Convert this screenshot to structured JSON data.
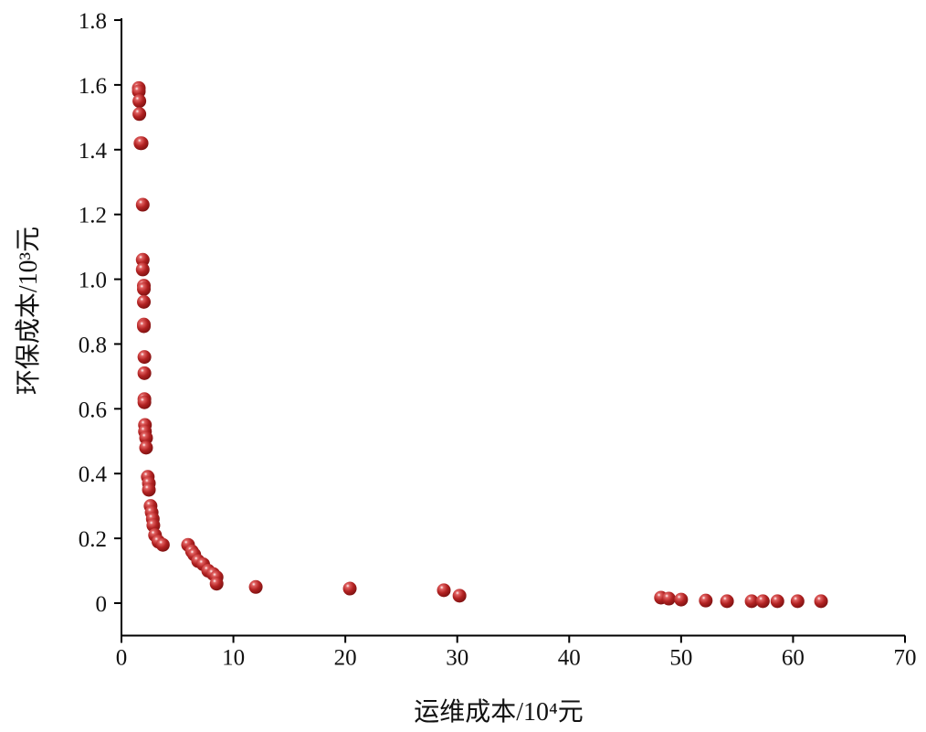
{
  "chart_data": {
    "type": "scatter",
    "xlabel": "运维成本/10⁴元",
    "ylabel": "环保成本/10³元",
    "xlim": [
      0,
      70
    ],
    "ylim": [
      -0.1,
      1.8
    ],
    "xticks": [
      0,
      10,
      20,
      30,
      40,
      50,
      60,
      70
    ],
    "yticks": [
      0,
      0.2,
      0.4,
      0.6,
      0.8,
      1.0,
      1.2,
      1.4,
      1.6,
      1.8
    ],
    "ytick_labels": [
      "0",
      "0.2",
      "0.4",
      "0.6",
      "0.8",
      "1.0",
      "1.2",
      "1.4",
      "1.6",
      "1.8"
    ],
    "grid": false,
    "marker_color": "#b22222",
    "points": [
      [
        1.55,
        1.59
      ],
      [
        1.55,
        1.58
      ],
      [
        1.6,
        1.55
      ],
      [
        1.6,
        1.51
      ],
      [
        1.7,
        1.42
      ],
      [
        1.8,
        1.42
      ],
      [
        1.9,
        1.23
      ],
      [
        1.9,
        1.06
      ],
      [
        1.9,
        1.03
      ],
      [
        2.0,
        0.98
      ],
      [
        2.0,
        0.97
      ],
      [
        2.0,
        0.93
      ],
      [
        2.0,
        0.86
      ],
      [
        2.0,
        0.855
      ],
      [
        2.05,
        0.76
      ],
      [
        2.05,
        0.71
      ],
      [
        2.05,
        0.63
      ],
      [
        2.05,
        0.62
      ],
      [
        2.1,
        0.55
      ],
      [
        2.1,
        0.53
      ],
      [
        2.2,
        0.51
      ],
      [
        2.2,
        0.48
      ],
      [
        2.35,
        0.39
      ],
      [
        2.45,
        0.37
      ],
      [
        2.45,
        0.35
      ],
      [
        2.6,
        0.3
      ],
      [
        2.7,
        0.28
      ],
      [
        2.8,
        0.26
      ],
      [
        2.85,
        0.24
      ],
      [
        3.0,
        0.21
      ],
      [
        3.3,
        0.19
      ],
      [
        3.7,
        0.18
      ],
      [
        5.95,
        0.18
      ],
      [
        6.3,
        0.16
      ],
      [
        6.5,
        0.15
      ],
      [
        6.85,
        0.13
      ],
      [
        7.3,
        0.12
      ],
      [
        7.75,
        0.1
      ],
      [
        8.2,
        0.09
      ],
      [
        8.5,
        0.08
      ],
      [
        8.5,
        0.06
      ],
      [
        12.0,
        0.05
      ],
      [
        20.4,
        0.045
      ],
      [
        28.8,
        0.04
      ],
      [
        30.2,
        0.023
      ],
      [
        48.2,
        0.017
      ],
      [
        48.9,
        0.014
      ],
      [
        50.0,
        0.011
      ],
      [
        52.2,
        0.008
      ],
      [
        54.1,
        0.006
      ],
      [
        56.3,
        0.006
      ],
      [
        57.3,
        0.006
      ],
      [
        58.6,
        0.006
      ],
      [
        60.4,
        0.006
      ],
      [
        62.5,
        0.006
      ]
    ]
  }
}
